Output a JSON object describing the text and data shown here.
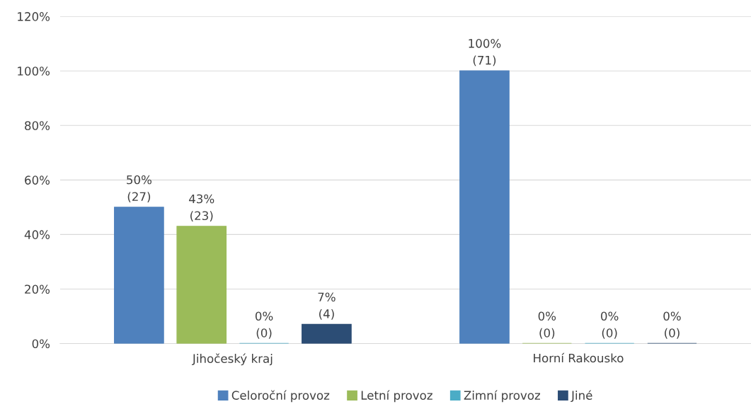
{
  "chart_data": {
    "type": "bar",
    "categories": [
      "Jihočeský kraj",
      "Horní Rakousko"
    ],
    "series": [
      {
        "name": "Celoroční provoz",
        "color": "#4f81bd",
        "values": [
          50,
          100
        ],
        "value_labels": [
          "50%\n(27)",
          "100%\n(71)"
        ]
      },
      {
        "name": "Letní provoz",
        "color": "#9bbb59",
        "values": [
          43,
          0
        ],
        "value_labels": [
          "43%\n(23)",
          "0%\n(0)"
        ]
      },
      {
        "name": "Zimní provoz",
        "color": "#4bacc6",
        "values": [
          0,
          0
        ],
        "value_labels": [
          "0%\n(0)",
          "0%\n(0)"
        ]
      },
      {
        "name": "Jiné",
        "color": "#2c4d75",
        "values": [
          7,
          0
        ],
        "value_labels": [
          "7%\n(4)",
          "0%\n(0)"
        ]
      }
    ],
    "ylim": [
      0,
      120
    ],
    "yticks": [
      {
        "value": 0,
        "label": "0%"
      },
      {
        "value": 20,
        "label": "20%"
      },
      {
        "value": 40,
        "label": "40%"
      },
      {
        "value": 60,
        "label": "60%"
      },
      {
        "value": 80,
        "label": "80%"
      },
      {
        "value": 100,
        "label": "100%"
      },
      {
        "value": 120,
        "label": "120%"
      }
    ],
    "grid": "y",
    "legend": "bottom"
  }
}
